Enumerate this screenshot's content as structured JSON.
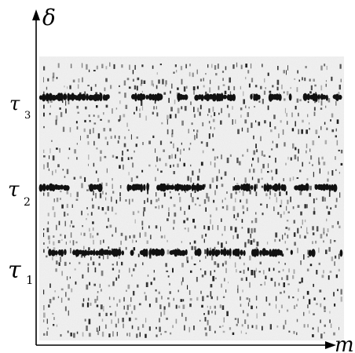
{
  "axes": {
    "y_label": "δ",
    "x_label": "m"
  },
  "bands": [
    {
      "label": "τ",
      "subscript": "3"
    },
    {
      "label": "τ",
      "subscript": "2"
    },
    {
      "label": "τ",
      "subscript": "1"
    }
  ],
  "colors": {
    "background_noise": "#f2f2f2",
    "ink": "#000000",
    "band": "#111111"
  }
}
